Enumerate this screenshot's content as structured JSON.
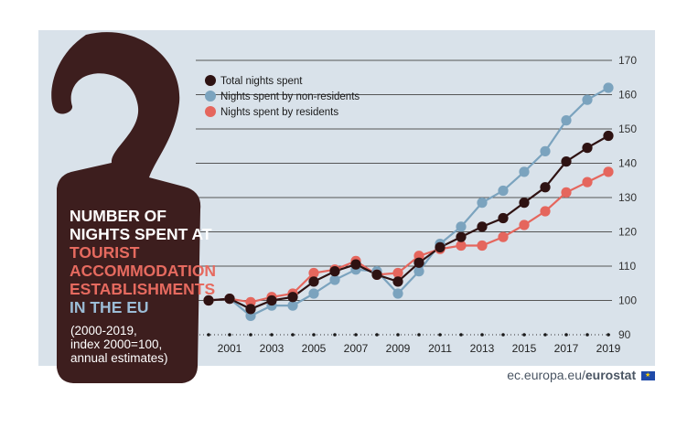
{
  "colors": {
    "plot_bg": "#d9e2ea",
    "grid": "#555555",
    "hanger": "#3d1e1e",
    "title_white": "#ffffff",
    "title_coral": "#e66a5f",
    "title_blue": "#9bbcd6",
    "total": "#2e1212",
    "non_residents": "#7ba3be",
    "residents": "#e5665d"
  },
  "infographic": {
    "title_line1": "NUMBER OF",
    "title_line2": "NIGHTS SPENT AT",
    "title_line3": "TOURIST",
    "title_line4": "ACCOMMODATION",
    "title_line5": "ESTABLISHMENTS",
    "title_line6": "IN THE EU",
    "note_line1": "(2000-2019,",
    "note_line2": "index 2000=100,",
    "note_line3": "annual estimates)"
  },
  "footer": {
    "source_prefix": "ec.europa.eu/",
    "source_brand": "eurostat"
  },
  "chart_data": {
    "type": "line",
    "title": "NUMBER OF NIGHTS SPENT AT TOURIST ACCOMMODATION ESTABLISHMENTS IN THE EU",
    "x": [
      2000,
      2001,
      2002,
      2003,
      2004,
      2005,
      2006,
      2007,
      2008,
      2009,
      2010,
      2011,
      2012,
      2013,
      2014,
      2015,
      2016,
      2017,
      2018,
      2019
    ],
    "x_tick_labels": [
      "2001",
      "2003",
      "2005",
      "2007",
      "2009",
      "2011",
      "2013",
      "2015",
      "2017",
      "2019"
    ],
    "x_ticks": [
      2001,
      2003,
      2005,
      2007,
      2009,
      2011,
      2013,
      2015,
      2017,
      2019
    ],
    "y_ticks": [
      90,
      100,
      110,
      120,
      130,
      140,
      150,
      160,
      170
    ],
    "y_tick_labels": [
      "90",
      "100",
      "110",
      "120",
      "130",
      "140",
      "150",
      "160",
      "170"
    ],
    "ylim": [
      90,
      170
    ],
    "grid": true,
    "legend_position": "top-left",
    "series": [
      {
        "name": "Total nights spent",
        "color": "#2e1212",
        "values": [
          100,
          100.5,
          97.5,
          100,
          101,
          105.5,
          108.5,
          110.5,
          107.5,
          105.5,
          111,
          115.5,
          118.5,
          121.5,
          124,
          128.5,
          133,
          140.5,
          144.5,
          148
        ]
      },
      {
        "name": "Nights spent by non-residents",
        "color": "#7ba3be",
        "values": [
          100,
          100.5,
          95.5,
          98.5,
          98.5,
          102,
          106,
          109,
          108.5,
          102,
          108.5,
          116.5,
          121.5,
          128.5,
          132,
          137.5,
          143.5,
          152.5,
          158.5,
          162
        ]
      },
      {
        "name": "Nights spent by residents",
        "color": "#e5665d",
        "values": [
          100,
          100.5,
          99.5,
          101,
          102,
          108,
          109,
          111.5,
          107.5,
          108,
          113,
          115,
          116,
          116,
          118.5,
          122,
          126,
          131.5,
          134.5,
          137.5
        ]
      }
    ]
  }
}
